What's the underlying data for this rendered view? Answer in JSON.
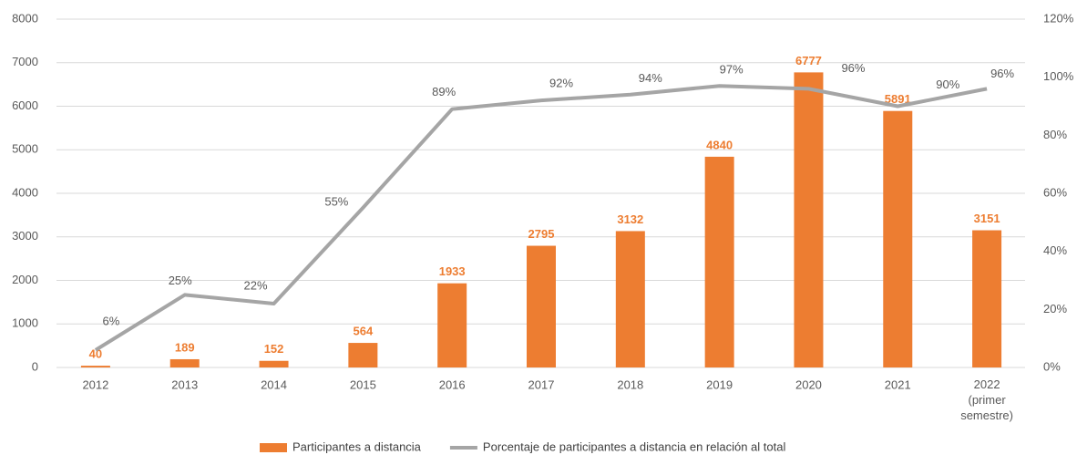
{
  "chart_data": {
    "type": "bar",
    "categories": [
      "2012",
      "2013",
      "2014",
      "2015",
      "2016",
      "2017",
      "2018",
      "2019",
      "2020",
      "2021",
      "2022 (primer semestre)"
    ],
    "series": [
      {
        "name": "Participantes a distancia",
        "type": "bar",
        "color": "#ed7d31",
        "values": [
          40,
          189,
          152,
          564,
          1933,
          2795,
          3132,
          4840,
          6777,
          5891,
          3151
        ]
      },
      {
        "name": "Porcentaje de participantes a distancia en relación al total",
        "type": "line",
        "axis": "y2",
        "color": "#a5a5a5",
        "values": [
          6,
          25,
          22,
          55,
          89,
          92,
          94,
          97,
          96,
          90,
          96
        ],
        "value_labels": [
          "6%",
          "25%",
          "22%",
          "55%",
          "89%",
          "92%",
          "94%",
          "97%",
          "96%",
          "90%",
          "96%"
        ]
      }
    ],
    "ylim": [
      0,
      8000
    ],
    "yticks": [
      0,
      1000,
      2000,
      3000,
      4000,
      5000,
      6000,
      7000,
      8000
    ],
    "y2lim": [
      0,
      120
    ],
    "y2ticks": [
      {
        "value": 0,
        "label": "0%"
      },
      {
        "value": 20,
        "label": "20%"
      },
      {
        "value": 40,
        "label": "40%"
      },
      {
        "value": 60,
        "label": "60%"
      },
      {
        "value": 80,
        "label": "80%"
      },
      {
        "value": 100,
        "label": "100%"
      },
      {
        "value": 120,
        "label": "120%"
      }
    ],
    "grid": true,
    "legend": "bottom"
  }
}
